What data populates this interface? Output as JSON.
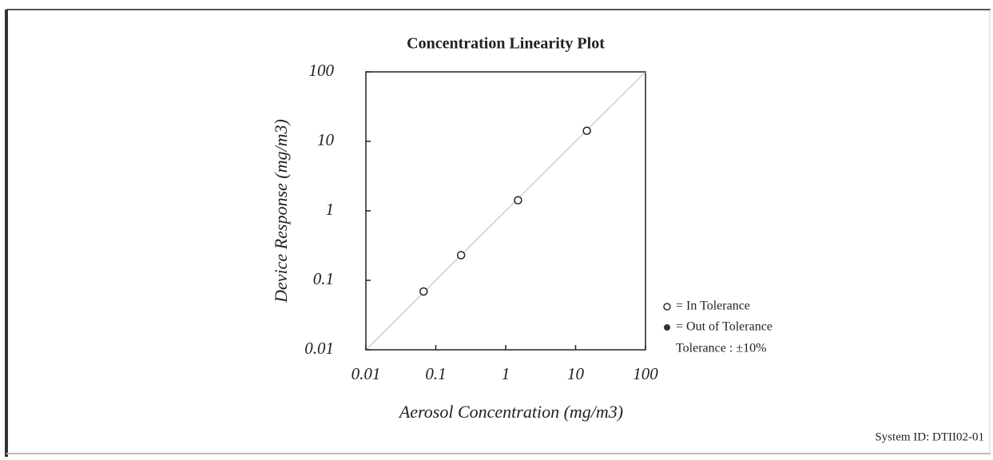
{
  "chart_data": {
    "type": "scatter",
    "title": "Concentration Linearity Plot",
    "x_label": "Aerosol Concentration (mg/m3)",
    "y_label": "Device Response (mg/m3)",
    "x_log": true,
    "y_log": true,
    "identity_line": true,
    "xlim": [
      0.01,
      100
    ],
    "ylim": [
      0.01,
      100
    ],
    "xticks": [
      0.01,
      0.1,
      1,
      10,
      100
    ],
    "yticks": [
      0.01,
      0.1,
      1,
      10,
      100
    ],
    "series": [
      {
        "name": "In Tolerance",
        "color": "#ffffff",
        "x": [
          0.067,
          0.23,
          1.5,
          14.5
        ],
        "values": [
          0.069,
          0.23,
          1.42,
          14.2
        ]
      }
    ],
    "legend": {
      "in_tolerance": "= In Tolerance",
      "out_of_tolerance": "= Out of Tolerance",
      "tolerance": "Tolerance : ±10%"
    },
    "system_id": "System ID: DTII02-01"
  }
}
